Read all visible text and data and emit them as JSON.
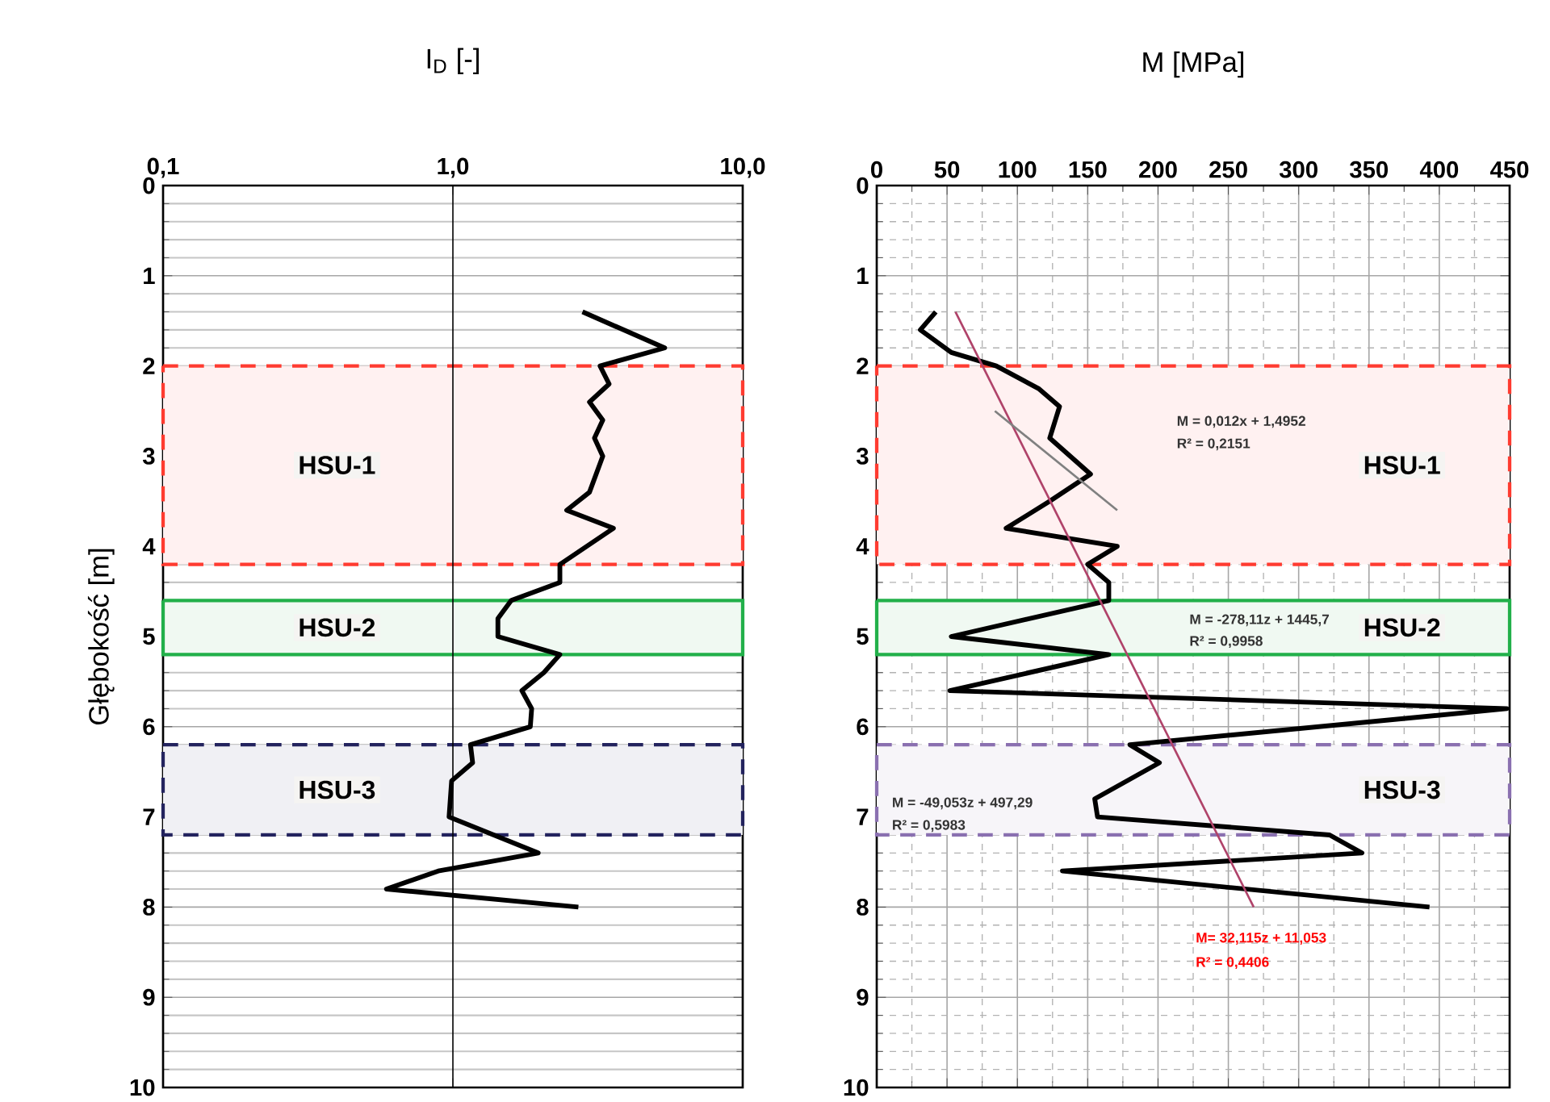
{
  "chart_data": [
    {
      "type": "line",
      "xlabel": "I$_{D}$ [-]",
      "ylabel": "Głębokość [m]",
      "log": "x",
      "grid": "y",
      "ref_lines": [
        {
          "axis": "x",
          "value": 1,
          "color": "#000000"
        }
      ],
      "marker": "none",
      "line_style": "solid",
      "xlim": [
        0.1,
        10
      ],
      "xticks": [
        {
          "value": 0.1,
          "label": "0,1"
        },
        {
          "value": 1,
          "label": "1,0"
        },
        {
          "value": 10,
          "label": "10,0"
        }
      ],
      "ylim": [
        10,
        0
      ],
      "yticks": [
        0,
        1,
        2,
        3,
        4,
        5,
        6,
        7,
        8,
        9,
        10
      ],
      "series": [
        {
          "color": "#000000",
          "x": [
            2.8,
            5.38,
            3.22,
            3.46,
            2.96,
            3.29,
            3.08,
            3.29,
            2.96,
            2.47,
            3.58,
            2.34,
            2.34,
            1.59,
            1.43,
            1.43,
            2.34,
            2.06,
            1.73,
            1.87,
            1.85,
            1.15,
            1.17,
            0.99,
            0.97,
            1.97,
            0.89,
            0.59,
            2.71
          ],
          "values": [
            1.4,
            1.8,
            2.0,
            2.2,
            2.4,
            2.6,
            2.8,
            3.0,
            3.4,
            3.6,
            3.8,
            4.2,
            4.4,
            4.6,
            4.8,
            5.0,
            5.2,
            5.4,
            5.6,
            5.8,
            6.0,
            6.2,
            6.4,
            6.6,
            7.0,
            7.4,
            7.6,
            7.8,
            8.0
          ]
        }
      ],
      "bands": [
        {
          "axis": "y",
          "from": 2.0,
          "to": 4.2,
          "label": "HSU-1",
          "color": "#ff3b30"
        },
        {
          "axis": "y",
          "from": 4.6,
          "to": 5.2,
          "label": "HSU-2",
          "color": "#22b04a"
        },
        {
          "axis": "y",
          "from": 6.2,
          "to": 7.2,
          "label": "HSU-3",
          "color": "#23235e"
        }
      ]
    },
    {
      "type": "line",
      "xlabel": "M [MPa]",
      "grid": true,
      "marker": "none",
      "line_style": "solid",
      "xlim": [
        0,
        450
      ],
      "xticks": [
        0,
        50,
        100,
        150,
        200,
        250,
        300,
        350,
        400,
        450
      ],
      "ylim": [
        10,
        0
      ],
      "yticks": [
        0,
        1,
        2,
        3,
        4,
        5,
        6,
        7,
        8,
        9,
        10
      ],
      "series": [
        {
          "color": "#000000",
          "x": [
            42,
            31,
            53,
            85,
            115,
            130,
            123,
            152,
            123,
            92,
            171,
            150,
            165,
            165,
            53,
            165,
            52,
            448,
            180,
            201,
            155,
            157,
            322,
            345,
            132,
            393
          ],
          "values": [
            1.4,
            1.6,
            1.85,
            2.0,
            2.25,
            2.45,
            2.8,
            3.2,
            3.5,
            3.8,
            4.0,
            4.2,
            4.4,
            4.6,
            5.0,
            5.2,
            5.6,
            5.8,
            6.2,
            6.4,
            6.8,
            7.0,
            7.2,
            7.4,
            7.6,
            8.0
          ]
        },
        {
          "color": "#b0436a",
          "x": [
            56,
            268
          ],
          "values": [
            1.4,
            8.0
          ]
        },
        {
          "color": "#808080",
          "x": [
            84,
            171
          ],
          "values": [
            2.5,
            3.6
          ]
        }
      ],
      "bands": [
        {
          "axis": "y",
          "from": 2.0,
          "to": 4.2,
          "label": "HSU-1",
          "color": "#ff3b30"
        },
        {
          "axis": "y",
          "from": 4.6,
          "to": 5.2,
          "label": "HSU-2",
          "color": "#22b04a"
        },
        {
          "axis": "y",
          "from": 6.2,
          "to": 7.2,
          "label": "HSU-3",
          "color": "#8a70b0"
        }
      ],
      "annotations": [
        "M = 0,012x + 1,4952",
        "R² = 0,2151",
        "M = -278,11z + 1445,7",
        "R² = 0,9958",
        "M = -49,053z + 497,29",
        "R² = 0,5983",
        "M= 32,115z + 11,053",
        "R² = 0,4406"
      ]
    }
  ]
}
